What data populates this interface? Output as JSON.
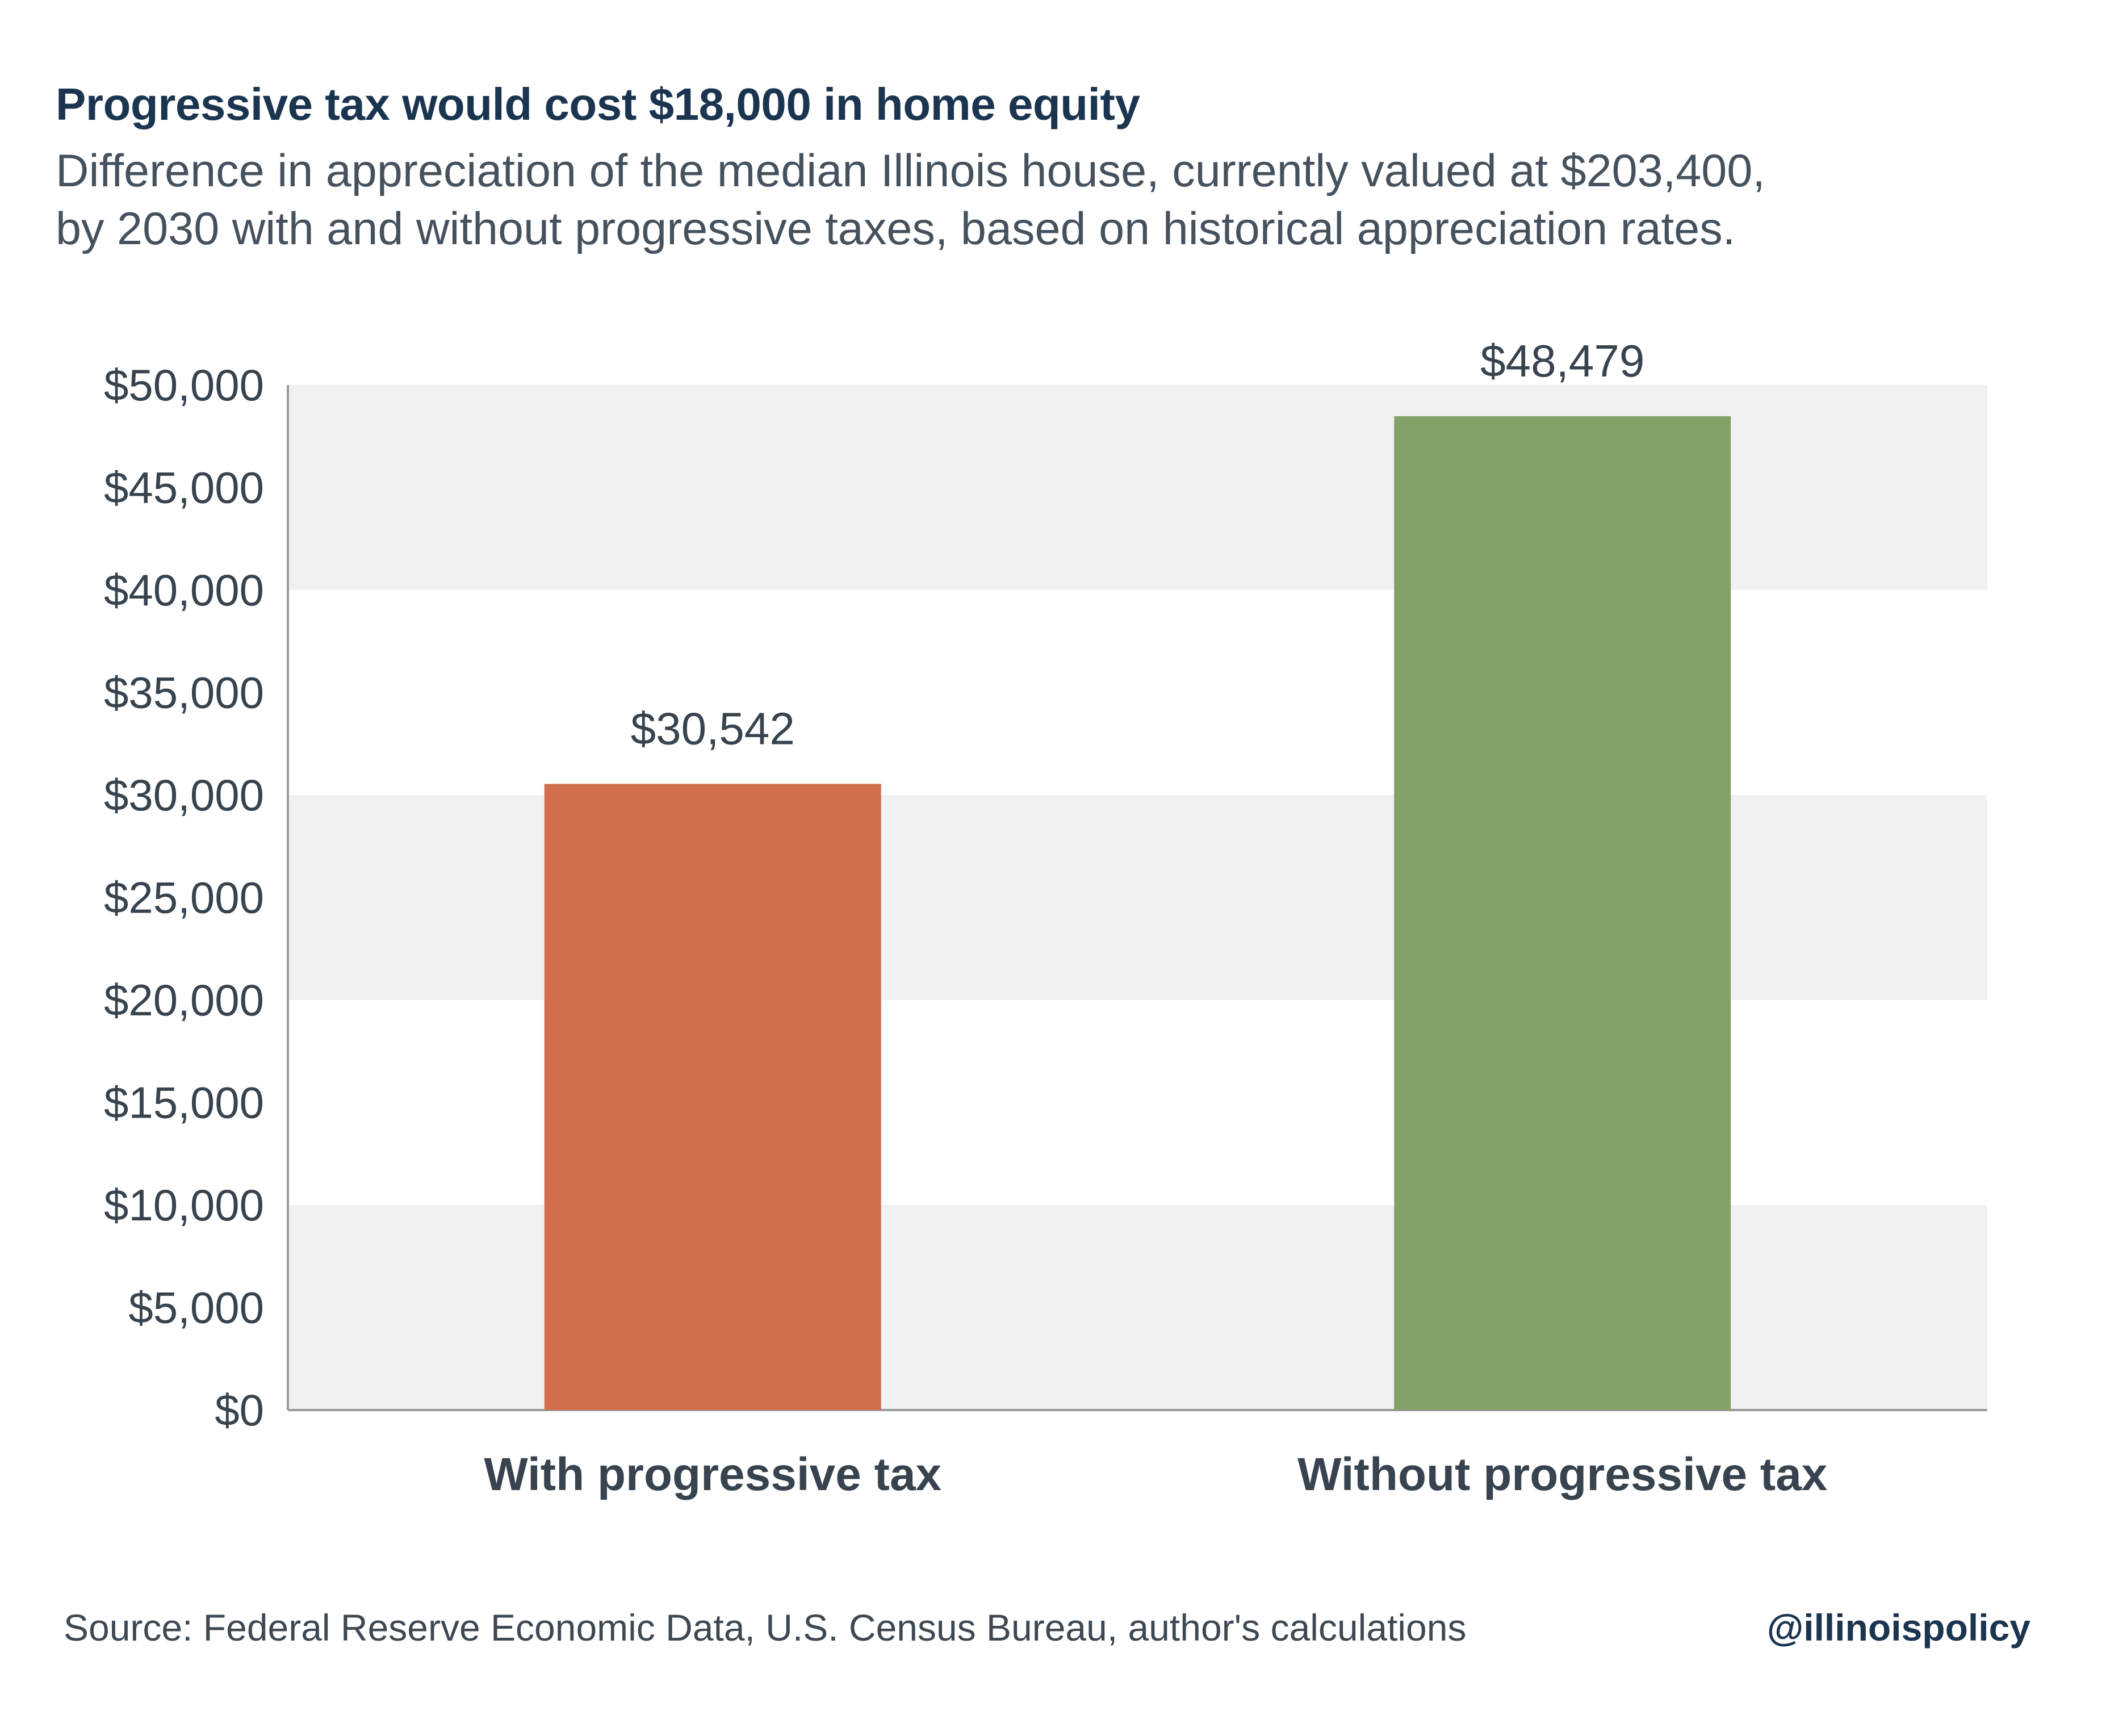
{
  "header": {
    "title": "Progressive tax would cost $18,000 in home equity",
    "subtitle_line1": "Difference in appreciation of the median Illinois house, currently valued at $203,400,",
    "subtitle_line2": "by 2030 with and without progressive taxes, based on historical appreciation rates."
  },
  "footer": {
    "source": "Source: Federal Reserve Economic Data, U.S. Census Bureau, author's calculations",
    "handle": "@illinoispolicy"
  },
  "chart_data": {
    "type": "bar",
    "title": "Progressive tax would cost $18,000 in home equity",
    "categories": [
      "With progressive tax",
      "Without progressive tax"
    ],
    "values": [
      30542,
      48479
    ],
    "value_labels": [
      "$30,542",
      "$48,479"
    ],
    "colors": [
      "#d16e4d",
      "#84a167"
    ],
    "ylim": [
      0,
      50000
    ],
    "yticks": [
      0,
      5000,
      10000,
      15000,
      20000,
      25000,
      30000,
      35000,
      40000,
      45000,
      50000
    ],
    "ytick_labels": [
      "$0",
      "$5,000",
      "$10,000",
      "$15,000",
      "$20,000",
      "$25,000",
      "$30,000",
      "$35,000",
      "$40,000",
      "$45,000",
      "$50,000"
    ],
    "xlabel": "",
    "ylabel": "",
    "grid": "alternating horizontal bands",
    "band_color": "#f1f1f1",
    "axis_color": "#9a9a9a",
    "text_color": "#37434e"
  }
}
